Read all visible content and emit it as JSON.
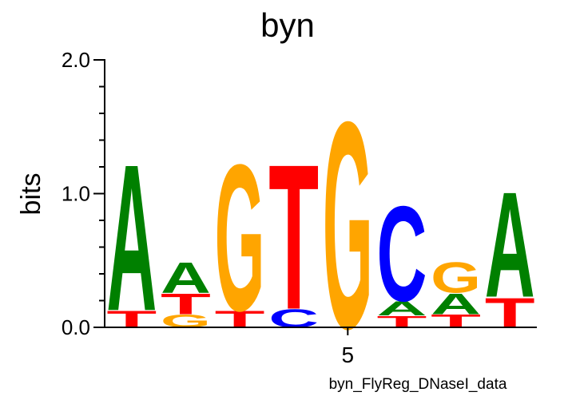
{
  "chart_data": {
    "type": "logo",
    "title": "byn",
    "y_label": "bits",
    "footer": "byn_FlyReg_DNaseI_data",
    "positions": [
      {
        "letters": [
          "T",
          "A"
        ],
        "heights": [
          0.13,
          1.14
        ]
      },
      {
        "letters": [
          "G",
          "T",
          "A"
        ],
        "heights": [
          0.1,
          0.16,
          0.24
        ]
      },
      {
        "letters": [
          "T",
          "G"
        ],
        "heights": [
          0.13,
          1.14
        ]
      },
      {
        "letters": [
          "C",
          "T"
        ],
        "heights": [
          0.14,
          1.13
        ]
      },
      {
        "letters": [
          "G"
        ],
        "heights": [
          1.61
        ]
      },
      {
        "letters": [
          "T",
          "A",
          "C"
        ],
        "heights": [
          0.09,
          0.11,
          0.74
        ]
      },
      {
        "letters": [
          "T",
          "A",
          "G"
        ],
        "heights": [
          0.1,
          0.16,
          0.24
        ]
      },
      {
        "letters": [
          "T",
          "A"
        ],
        "heights": [
          0.23,
          0.82
        ]
      }
    ],
    "colors": {
      "A": "#008000",
      "C": "#0000ff",
      "G": "#ffa500",
      "T": "#ff0000"
    },
    "xlim": [
      0.5,
      8.5
    ],
    "xticks": [
      5
    ],
    "ylim": [
      0,
      2
    ],
    "yticks": [
      {
        "value": 0,
        "label": "0.0"
      },
      {
        "value": 1,
        "label": "1.0"
      },
      {
        "value": 2,
        "label": "2.0"
      }
    ],
    "minor_yticks": [
      0.2,
      0.4,
      0.6,
      0.8,
      1.2,
      1.4,
      1.6,
      1.8
    ]
  }
}
